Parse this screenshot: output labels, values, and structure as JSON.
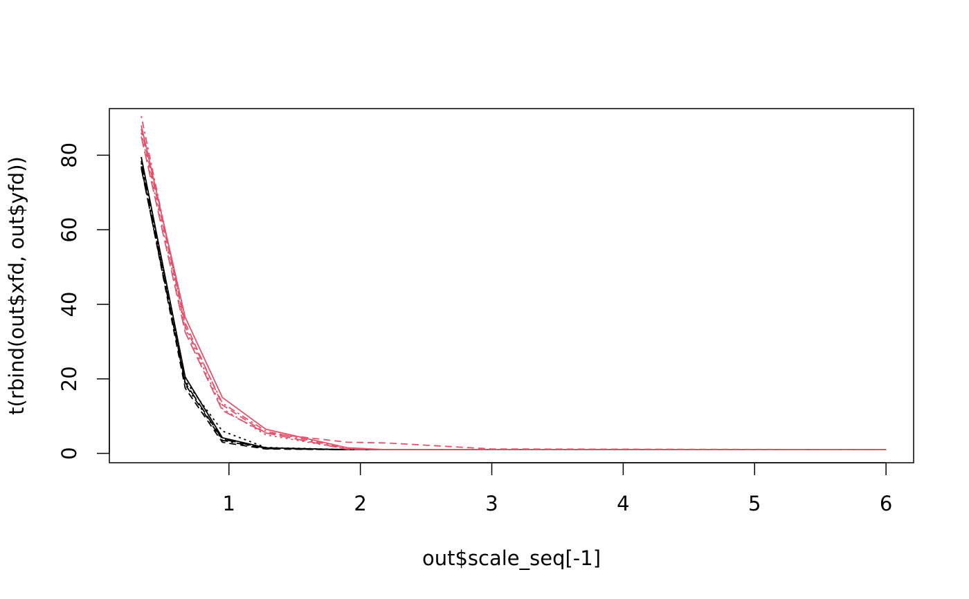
{
  "chart_data": {
    "type": "line",
    "title": "",
    "xlabel": "out$scale_seq[-1]",
    "ylabel": "t(rbind(out$xfd, out$yfd))",
    "xlim": [
      0.09,
      6.21
    ],
    "ylim": [
      -2.5,
      92.5
    ],
    "x_ticks": [
      1,
      2,
      3,
      4,
      5,
      6
    ],
    "y_ticks": [
      0,
      20,
      40,
      60,
      80
    ],
    "grid": false,
    "legend": "none",
    "colors": {
      "xfd": "#000000",
      "yfd": "#DF536B",
      "axis": "#000000"
    },
    "x": [
      0.333,
      0.667,
      0.95,
      1.28,
      1.9,
      2.2,
      3.0,
      6.0
    ],
    "series": [
      {
        "group": "xfd",
        "dash": "solid",
        "values": [
          79.5,
          20.5,
          4.2,
          1.5,
          1.0,
          1.0,
          1.0,
          1.0
        ]
      },
      {
        "group": "xfd",
        "dash": "dashed",
        "values": [
          77.0,
          17.5,
          3.0,
          1.2,
          1.0,
          1.0,
          1.0,
          1.0
        ]
      },
      {
        "group": "xfd",
        "dash": "dotted",
        "values": [
          78.5,
          19.5,
          6.0,
          1.6,
          1.0,
          1.0,
          1.0,
          1.0
        ]
      },
      {
        "group": "xfd",
        "dash": "dotdash",
        "values": [
          78.0,
          18.5,
          3.5,
          1.3,
          1.0,
          1.0,
          1.0,
          1.0
        ]
      },
      {
        "group": "xfd",
        "dash": "longdash",
        "values": [
          76.5,
          19.0,
          3.8,
          1.4,
          1.0,
          1.0,
          1.0,
          1.0
        ]
      },
      {
        "group": "yfd",
        "dash": "solid",
        "values": [
          88.0,
          36.5,
          15.0,
          6.5,
          1.5,
          1.0,
          1.0,
          1.0
        ]
      },
      {
        "group": "yfd",
        "dash": "dashed",
        "values": [
          87.0,
          35.0,
          13.0,
          5.5,
          3.0,
          2.8,
          1.2,
          1.0
        ]
      },
      {
        "group": "yfd",
        "dash": "dotted",
        "values": [
          86.0,
          33.5,
          12.0,
          5.0,
          1.2,
          1.0,
          1.0,
          1.0
        ]
      },
      {
        "group": "yfd",
        "dash": "dotdash",
        "values": [
          90.5,
          34.0,
          13.5,
          6.0,
          1.3,
          1.0,
          1.0,
          1.0
        ]
      },
      {
        "group": "yfd",
        "dash": "longdash",
        "values": [
          85.0,
          32.5,
          11.5,
          5.5,
          1.1,
          1.0,
          1.0,
          1.0
        ]
      }
    ]
  }
}
